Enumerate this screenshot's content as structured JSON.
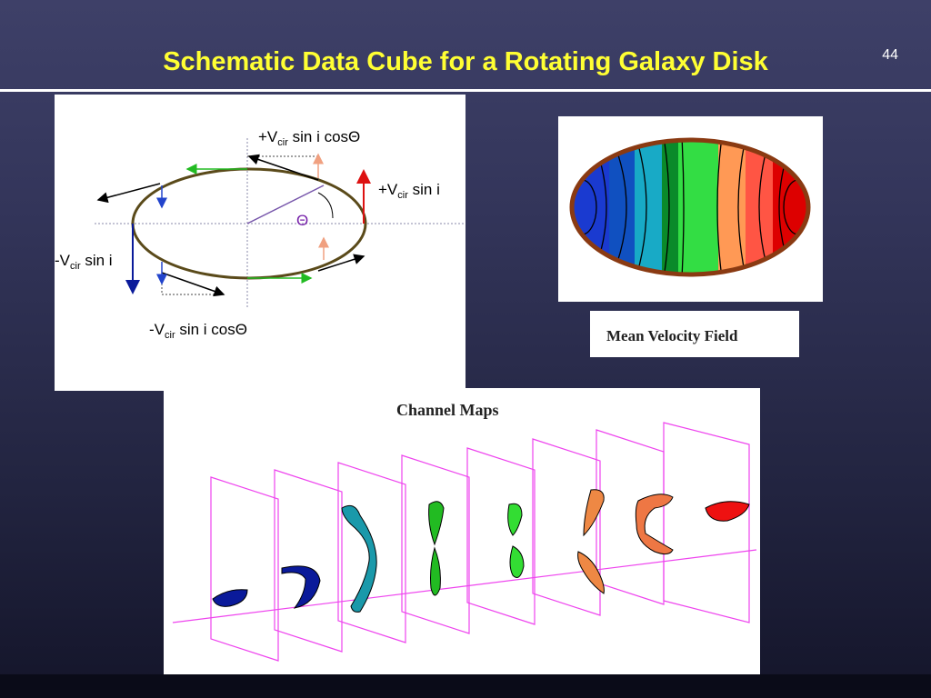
{
  "slide": {
    "title": "Schematic Data Cube for a Rotating Galaxy Disk",
    "number": "44"
  },
  "disk_diagram": {
    "label_top": {
      "sign": "+V",
      "sub": "cir",
      "rest": " sin i cosΘ"
    },
    "label_right": {
      "sign": "+V",
      "sub": "cir",
      "rest": " sin i"
    },
    "label_left": {
      "sign": "-V",
      "sub": "cir",
      "rest": " sin i"
    },
    "label_bottom": {
      "sign": "-V",
      "sub": "cir",
      "rest": " sin i cosΘ"
    },
    "angle_label": "Θ"
  },
  "velocity_field": {
    "caption": "Mean Velocity Field",
    "colors": [
      "#1a33cc",
      "#0a3aa8",
      "#18aac6",
      "#0a8a2a",
      "#33dd44",
      "#ff8844",
      "#ee4444",
      "#dd0000"
    ]
  },
  "channel_maps": {
    "title": "Channel Maps",
    "frame_color": "#ee44ee",
    "channel_colors": [
      "#0a1a9a",
      "#0a1a9a",
      "#1a99aa",
      "#22bb22",
      "#33dd33",
      "#ee8844",
      "#ee7744",
      "#ee1111"
    ]
  }
}
